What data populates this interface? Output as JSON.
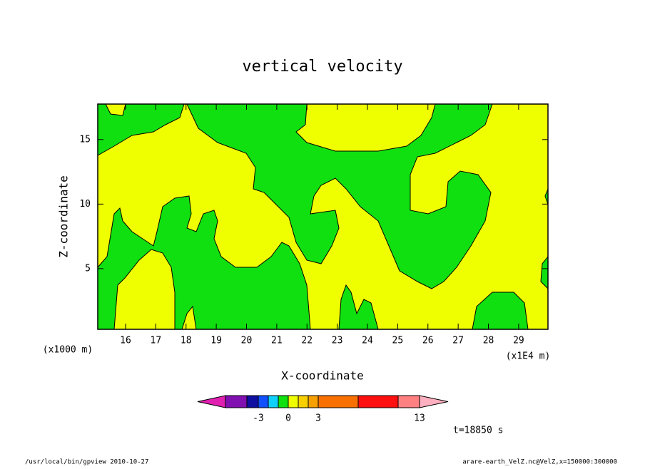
{
  "chart_data": {
    "type": "contour",
    "title": "vertical velocity",
    "x_label": "X-coordinate",
    "y_label": "Z-coordinate",
    "x_unit": "(x1E4 m)",
    "y_unit": "(x1000 m)",
    "time_label": "t=18850 s",
    "xlim": [
      15.08,
      29.97
    ],
    "ylim": [
      0.3,
      17.75
    ],
    "xticks": [
      16,
      17,
      18,
      19,
      20,
      21,
      22,
      23,
      24,
      25,
      26,
      27,
      28,
      29
    ],
    "yticks": [
      5,
      10,
      15
    ],
    "colorbar": {
      "colors": [
        "#e020b0",
        "#8010b0",
        "#1010a0",
        "#1050ff",
        "#10d0ff",
        "#10e010",
        "#f0ff00",
        "#f8d000",
        "#f8a000",
        "#f87000",
        "#ff1010",
        "#ff8080",
        "#ffb0c0"
      ],
      "ticks": [
        -3,
        0,
        3,
        13
      ]
    },
    "footer_left": "/usr/local/bin/gpview   2010-10-27",
    "footer_right": "arare-earth_VelZ.nc@VelZ,x=150000:300000"
  }
}
